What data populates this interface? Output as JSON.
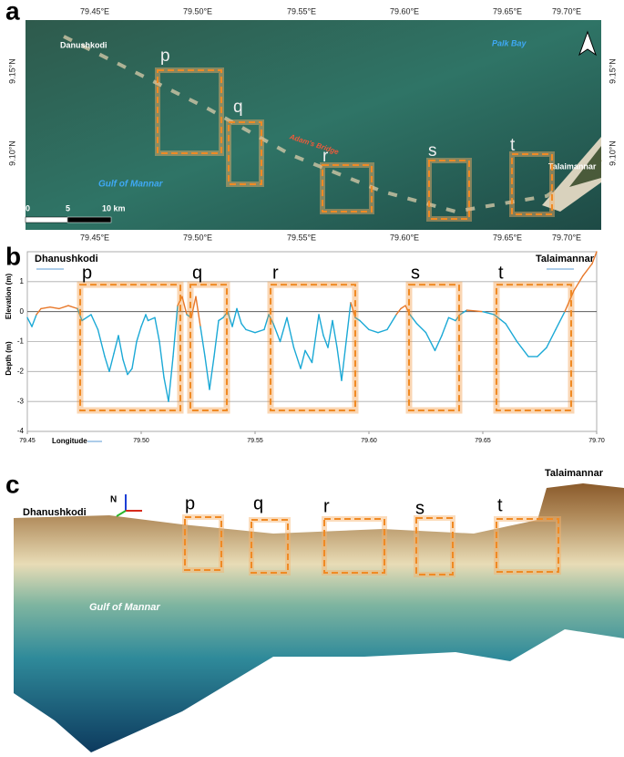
{
  "panel_a": {
    "label": "a",
    "lon_labels": [
      "79.45°E",
      "79.50°E",
      "79.55°E",
      "79.60°E",
      "79.65°E",
      "79.70°E"
    ],
    "lat_labels": [
      "9.15°N",
      "9.10°N"
    ],
    "places": {
      "danushkodi": "Danushkodi",
      "palk_bay": "Palk Bay",
      "adams_bridge": "Adam's Bridge",
      "gulf": "Gulf of Mannar",
      "talaimannar": "Talaimannar"
    },
    "boxes": [
      "p",
      "q",
      "r",
      "s",
      "t"
    ],
    "scale": [
      "0",
      "5",
      "10 km"
    ]
  },
  "chart_data": {
    "type": "line",
    "panel_label": "b",
    "left_label": "Dhanushkodi",
    "right_label": "Talaimannar",
    "xlabel": "Longitude",
    "ylabel_top": "Elevation (m)",
    "ylabel_bottom": "Depth (m)",
    "x": [
      79.45,
      79.452,
      79.454,
      79.456,
      79.46,
      79.464,
      79.468,
      79.472,
      79.474,
      79.478,
      79.481,
      79.484,
      79.486,
      79.488,
      79.49,
      79.492,
      79.494,
      79.496,
      79.498,
      79.5,
      79.502,
      79.503,
      79.506,
      79.508,
      79.51,
      79.512,
      79.514,
      79.516,
      79.518,
      79.52,
      79.522,
      79.524,
      79.526,
      79.528,
      79.53,
      79.532,
      79.534,
      79.536,
      79.538,
      79.54,
      79.542,
      79.544,
      79.546,
      79.55,
      79.554,
      79.556,
      79.558,
      79.561,
      79.564,
      79.567,
      79.57,
      79.572,
      79.575,
      79.578,
      79.58,
      79.582,
      79.584,
      79.586,
      79.588,
      79.59,
      79.592,
      79.594,
      79.596,
      79.6,
      79.604,
      79.608,
      79.612,
      79.614,
      79.616,
      79.618,
      79.621,
      79.625,
      79.629,
      79.632,
      79.635,
      79.638,
      79.64,
      79.643,
      79.65,
      79.655,
      79.66,
      79.665,
      79.67,
      79.674,
      79.678,
      79.682,
      79.686,
      79.69,
      79.694,
      79.698,
      79.7
    ],
    "values": [
      -0.2,
      -0.5,
      -0.1,
      0.1,
      0.15,
      0.1,
      0.2,
      0.1,
      -0.3,
      -0.1,
      -0.6,
      -1.5,
      -2.0,
      -1.4,
      -0.8,
      -1.6,
      -2.1,
      -1.9,
      -1.0,
      -0.5,
      -0.1,
      -0.3,
      -0.2,
      -1.0,
      -2.2,
      -3.0,
      -1.5,
      0.2,
      0.5,
      -0.1,
      -0.2,
      0.5,
      -0.5,
      -1.5,
      -2.6,
      -1.5,
      -0.3,
      -0.2,
      0.0,
      -0.5,
      0.1,
      -0.4,
      -0.6,
      -0.7,
      -0.6,
      -0.1,
      -0.4,
      -1.0,
      -0.2,
      -1.2,
      -1.9,
      -1.3,
      -1.7,
      -0.1,
      -0.8,
      -1.2,
      -0.3,
      -1.2,
      -2.3,
      -1.0,
      0.3,
      -0.2,
      -0.3,
      -0.6,
      -0.7,
      -0.6,
      -0.1,
      0.1,
      0.2,
      -0.1,
      -0.4,
      -0.7,
      -1.3,
      -0.8,
      -0.2,
      -0.3,
      -0.1,
      0.05,
      0.0,
      -0.1,
      -0.4,
      -1.0,
      -1.5,
      -1.5,
      -1.2,
      -0.6,
      0.0,
      0.7,
      1.2,
      1.6,
      2.0
    ],
    "above_color": "#e8782a",
    "below_color": "#1ba9d6",
    "xlim": [
      79.45,
      79.7
    ],
    "ylim": [
      -4,
      2
    ],
    "xticks": [
      79.45,
      {
        "value": 79.5,
        "label": "79.50"
      },
      79.55,
      {
        "value": 79.6,
        "label": "79.60"
      },
      79.65,
      {
        "value": 79.7,
        "label": "79.70"
      }
    ],
    "yticks": [
      -4,
      -3,
      -2,
      -1,
      0,
      1
    ],
    "grid": true,
    "regions": [
      {
        "label": "p",
        "x0": 79.4732,
        "x1": 79.5172
      },
      {
        "label": "q",
        "x0": 79.5216,
        "x1": 79.5376
      },
      {
        "label": "r",
        "x0": 79.5568,
        "x1": 79.594
      },
      {
        "label": "s",
        "x0": 79.6176,
        "x1": 79.6396
      },
      {
        "label": "t",
        "x0": 79.656,
        "x1": 79.6888
      }
    ],
    "region_ylim": [
      -3.3,
      0.9
    ],
    "region_color": "#f08a24"
  },
  "panel_c": {
    "label": "c",
    "left_label": "Dhanushkodi",
    "right_label": "Talaimannar",
    "north": "N",
    "gulf": "Gulf of Mannar",
    "boxes": [
      "p",
      "q",
      "r",
      "s",
      "t"
    ]
  }
}
